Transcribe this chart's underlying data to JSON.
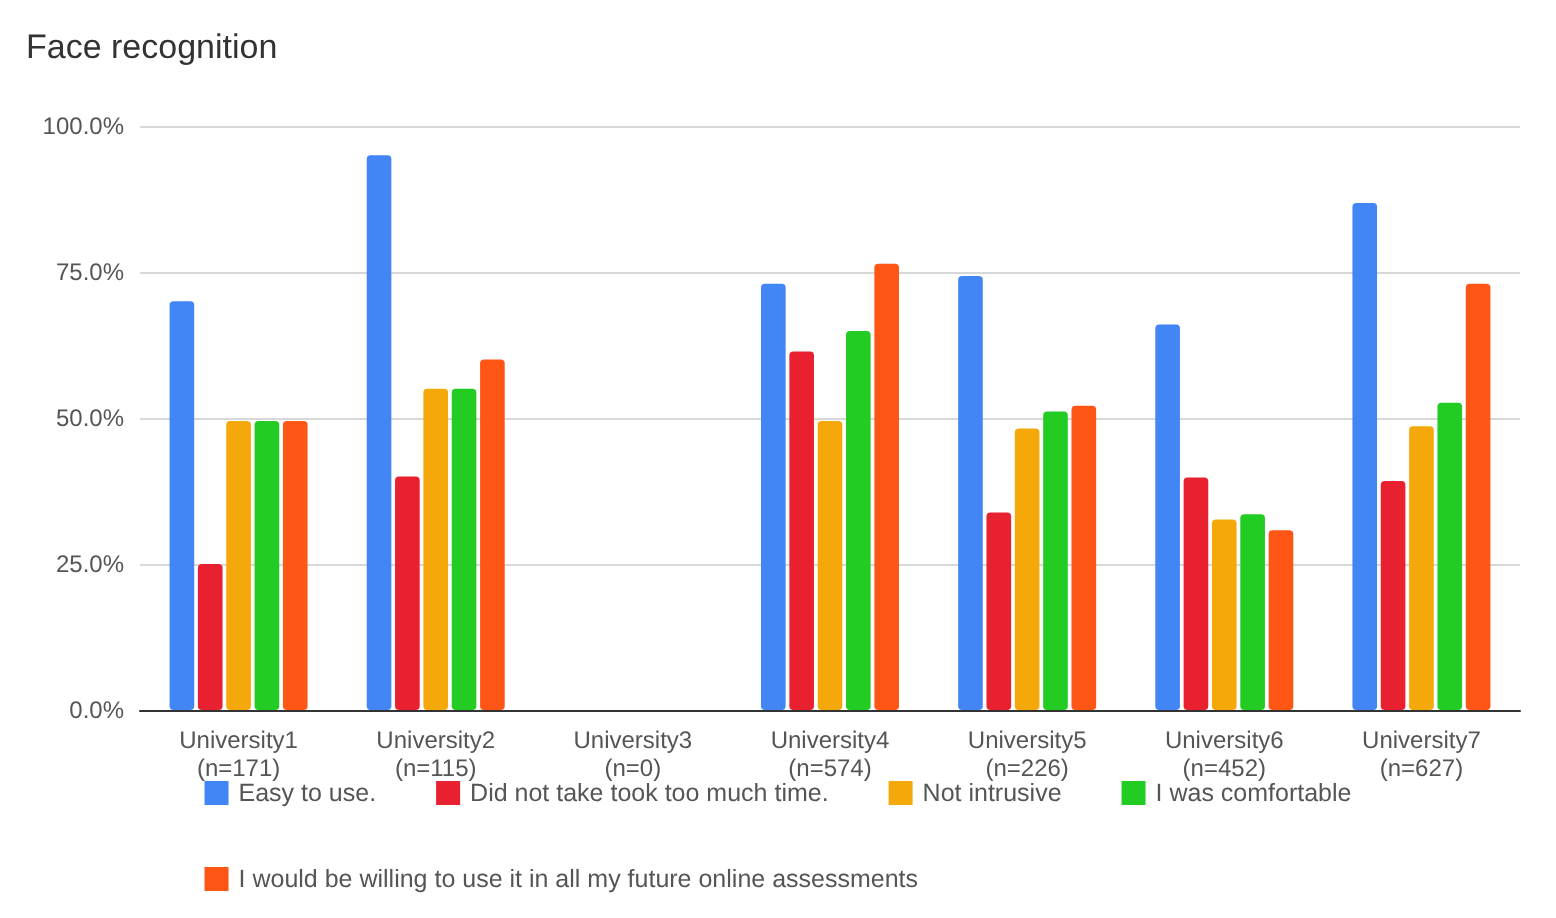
{
  "chart_data": {
    "type": "bar",
    "title": "Face recognition",
    "categories": [
      "University1\n(n=171)",
      "University2\n(n=115)",
      "University3\n(n=0)",
      "University4\n(n=574)",
      "University5\n(n=226)",
      "University6\n(n=452)",
      "University7\n(n=627)"
    ],
    "series": [
      {
        "name": "Easy to use.",
        "color": "#4285f4",
        "values": [
          70,
          95,
          null,
          73,
          74.3,
          66,
          86.8
        ]
      },
      {
        "name": "Did not take took too much time.",
        "color": "#e8202f",
        "values": [
          25,
          40,
          null,
          61.4,
          33.8,
          39.8,
          39.2
        ]
      },
      {
        "name": "Not intrusive",
        "color": "#f5a80a",
        "values": [
          49.5,
          55,
          null,
          49.5,
          48.2,
          32.6,
          48.6
        ]
      },
      {
        "name": "I was comfortable",
        "color": "#22cc22",
        "values": [
          49.5,
          55,
          null,
          64.9,
          51.1,
          33.5,
          52.6
        ]
      },
      {
        "name": "I would be willing to use it in all my future online assessments",
        "color": "#ff5515",
        "values": [
          49.5,
          60,
          null,
          76.4,
          52.1,
          30.8,
          73
        ]
      }
    ],
    "ylim": [
      0,
      100
    ],
    "yticks": [
      {
        "value": 0,
        "label": "0.0%"
      },
      {
        "value": 25,
        "label": "25.0%"
      },
      {
        "value": 50,
        "label": "50.0%"
      },
      {
        "value": 75,
        "label": "75.0%"
      },
      {
        "value": 100,
        "label": "100.0%"
      }
    ],
    "grid": "y",
    "legend": "bottom"
  }
}
